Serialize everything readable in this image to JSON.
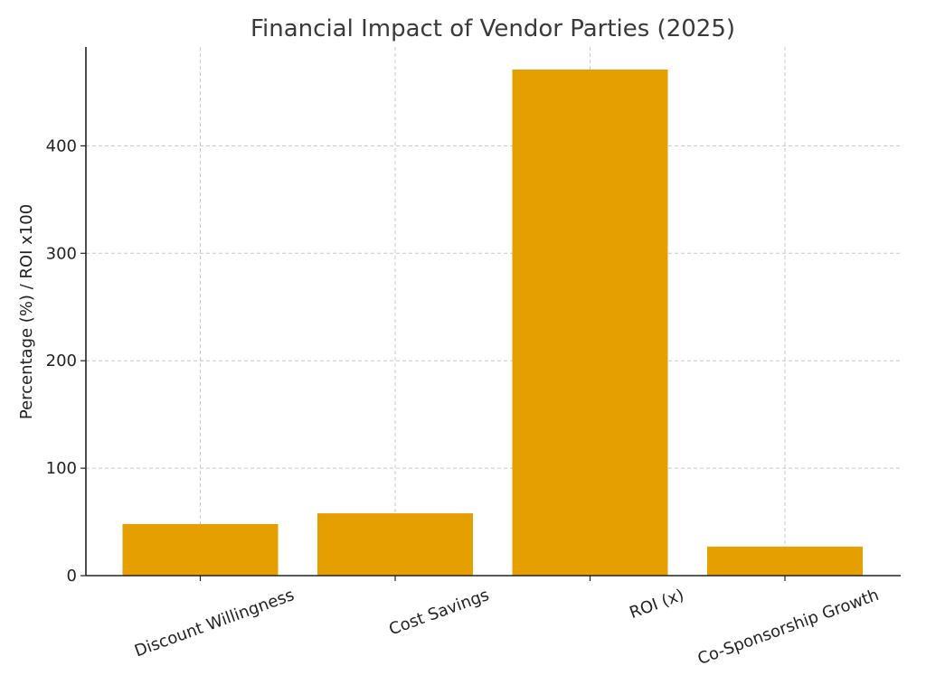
{
  "chart_data": {
    "type": "bar",
    "title": "Financial Impact of Vendor Parties (2025)",
    "xlabel": "",
    "ylabel": "Percentage (%) / ROI x100",
    "categories": [
      "Discount Willingness",
      "Cost Savings",
      "ROI (x)",
      "Co-Sponsorship Growth"
    ],
    "values": [
      48,
      58,
      471,
      27
    ],
    "ylim": [
      0,
      492
    ],
    "yticks": [
      0,
      100,
      200,
      300,
      400
    ],
    "grid": true,
    "bar_color": "#E5A000"
  }
}
